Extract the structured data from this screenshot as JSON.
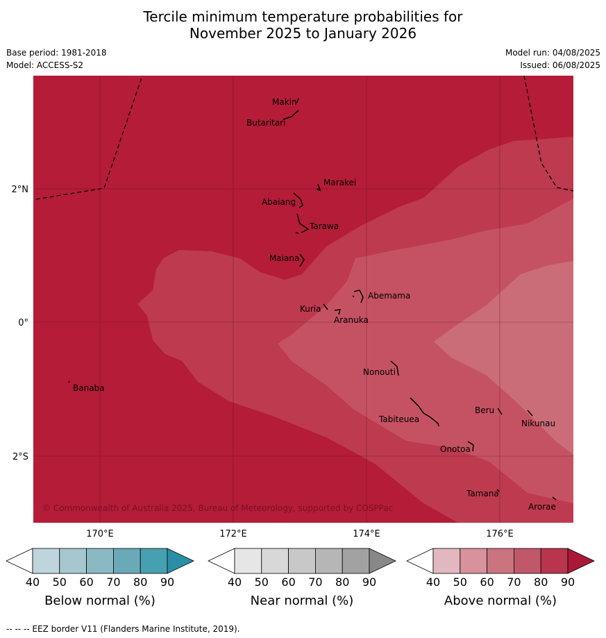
{
  "title_line1": "Tercile minimum temperature probabilities for",
  "title_line2": "November 2025 to January 2026",
  "base_period": "Base period: 1981-2018",
  "model": "Model: ACCESS-S2",
  "model_run": "Model run: 04/08/2025",
  "issued": "Issued: 06/08/2025",
  "copyright": "© Commonwealth of Australia 2025, Bureau of Meteorology, supported by COSPPac",
  "footer": "--  --  -- EEZ border V11 (Flanders Marine Institute, 2019).",
  "axes": {
    "lat_labels": [
      "2°N",
      "0°",
      "2°S"
    ],
    "lon_labels": [
      "170°E",
      "172°E",
      "174°E",
      "176°E"
    ]
  },
  "places": {
    "makin": "Makin",
    "butaritari": "Butaritari",
    "marakei": "Marakei",
    "abaiang": "Abaiang",
    "tarawa": "Tarawa",
    "maiana": "Maiana",
    "abemama": "Abemama",
    "kuria": "Kuria",
    "aranuka": "Aranuka",
    "nonouti": "Nonouti",
    "banaba": "Banaba",
    "beru": "Beru",
    "tabiteuea": "Tabiteuea",
    "nikunau": "Nikunau",
    "onotoa": "Onotoa",
    "tamana": "Tamana",
    "arorae": "Arorae"
  },
  "colors": {
    "above_50_60": "#d99aa4",
    "above_60_70": "#c96f7c",
    "above_70_80": "#bf3b51",
    "above_80_90": "#b41c37",
    "grid": "#5a1020"
  },
  "colorbars": [
    {
      "label": "Below normal (%)",
      "ticks": [
        "40",
        "50",
        "60",
        "70",
        "80",
        "90"
      ],
      "colors": [
        "#ffffff",
        "#bfd4dc",
        "#a6c7cf",
        "#8ab9c4",
        "#6aa9b8",
        "#46a0b0",
        "#2a8fa6"
      ]
    },
    {
      "label": "Near normal (%)",
      "ticks": [
        "40",
        "50",
        "60",
        "70",
        "80",
        "90"
      ],
      "colors": [
        "#ffffff",
        "#e6e6e6",
        "#d8d8d8",
        "#c8c8c8",
        "#b6b6b6",
        "#a2a2a2",
        "#888888"
      ]
    },
    {
      "label": "Above normal (%)",
      "ticks": [
        "40",
        "50",
        "60",
        "70",
        "80",
        "90"
      ],
      "colors": [
        "#ffffff",
        "#e2b7bf",
        "#d8929c",
        "#ca7480",
        "#c0586a",
        "#b8354d",
        "#aa1838"
      ]
    }
  ]
}
